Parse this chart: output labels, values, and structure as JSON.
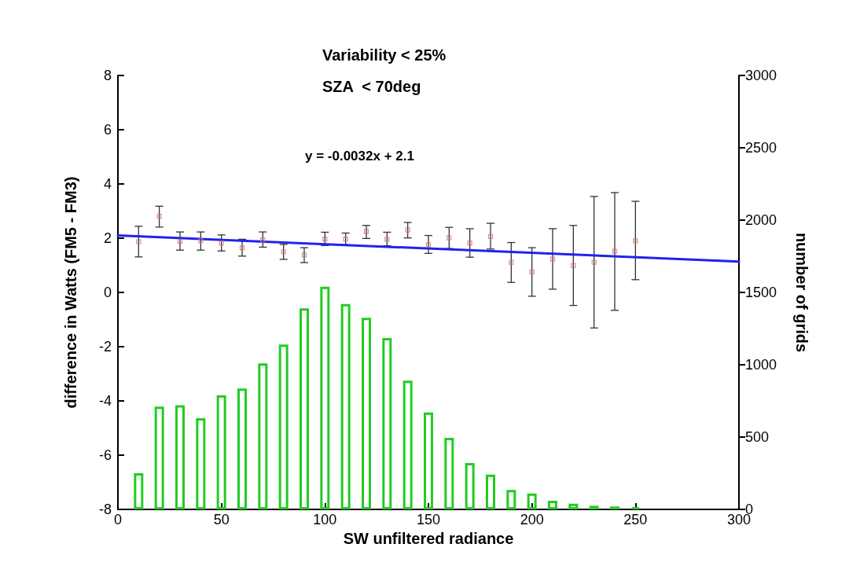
{
  "chart_data": {
    "type": "scatter",
    "title": "Variability < 25%",
    "subtitle": "SZA  < 70deg",
    "annotations": [
      "y = -0.0032x + 2.1"
    ],
    "xlabel": "SW unfiltered radiance",
    "ylabel": "difference in Watts (FM5 - FM3)",
    "y2label": "number of grids",
    "xlim": [
      0,
      300
    ],
    "xticks": [
      0,
      50,
      100,
      150,
      200,
      250,
      300
    ],
    "ylim": [
      -8,
      8
    ],
    "yticks": [
      -8,
      -6,
      -4,
      -2,
      0,
      2,
      4,
      6,
      8
    ],
    "y2lim": [
      0,
      3000
    ],
    "y2ticks": [
      0,
      500,
      1000,
      1500,
      2000,
      2500,
      3000
    ],
    "grid": false,
    "series": [
      {
        "type": "bar",
        "axis": "y2",
        "color": "#22cc22",
        "x": [
          10,
          20,
          30,
          40,
          50,
          60,
          70,
          80,
          90,
          100,
          110,
          120,
          130,
          140,
          150,
          160,
          170,
          180,
          190,
          200,
          210,
          220,
          230,
          240,
          250
        ],
        "values": [
          250,
          710,
          720,
          630,
          790,
          835,
          1010,
          1140,
          1390,
          1540,
          1420,
          1325,
          1185,
          890,
          670,
          495,
          320,
          240,
          135,
          110,
          60,
          40,
          25,
          20,
          15
        ]
      },
      {
        "color": "#d07070",
        "marker": "square",
        "x": [
          10,
          20,
          30,
          40,
          50,
          60,
          70,
          80,
          90,
          100,
          110,
          120,
          130,
          140,
          150,
          160,
          170,
          180,
          190,
          200,
          210,
          220,
          230,
          240,
          250
        ],
        "values": [
          1.87,
          2.81,
          1.89,
          1.91,
          1.82,
          1.65,
          1.94,
          1.5,
          1.38,
          1.97,
          1.97,
          2.25,
          1.96,
          2.3,
          1.75,
          2.01,
          1.82,
          2.06,
          1.11,
          0.76,
          1.23,
          0.99,
          1.11,
          1.52,
          1.9
        ],
        "errors": [
          [
            1.31,
            2.44
          ],
          [
            2.41,
            3.18
          ],
          [
            1.56,
            2.23
          ],
          [
            1.56,
            2.23
          ],
          [
            1.53,
            2.12
          ],
          [
            1.34,
            1.96
          ],
          [
            1.67,
            2.23
          ],
          [
            1.22,
            1.77
          ],
          [
            1.1,
            1.65
          ],
          [
            1.73,
            2.22
          ],
          [
            1.76,
            2.19
          ],
          [
            1.99,
            2.47
          ],
          [
            1.72,
            2.22
          ],
          [
            2.01,
            2.58
          ],
          [
            1.44,
            2.1
          ],
          [
            1.62,
            2.4
          ],
          [
            1.3,
            2.35
          ],
          [
            1.6,
            2.55
          ],
          [
            0.37,
            1.84
          ],
          [
            -0.14,
            1.65
          ],
          [
            0.12,
            2.35
          ],
          [
            -0.48,
            2.47
          ],
          [
            -1.31,
            3.54
          ],
          [
            -0.66,
            3.68
          ],
          [
            0.47,
            3.36
          ]
        ]
      },
      {
        "type": "line",
        "color": "#2222ee",
        "marker": "none",
        "line_style": "solid",
        "x": [
          0,
          300
        ],
        "values": [
          2.1,
          1.14
        ]
      }
    ]
  }
}
